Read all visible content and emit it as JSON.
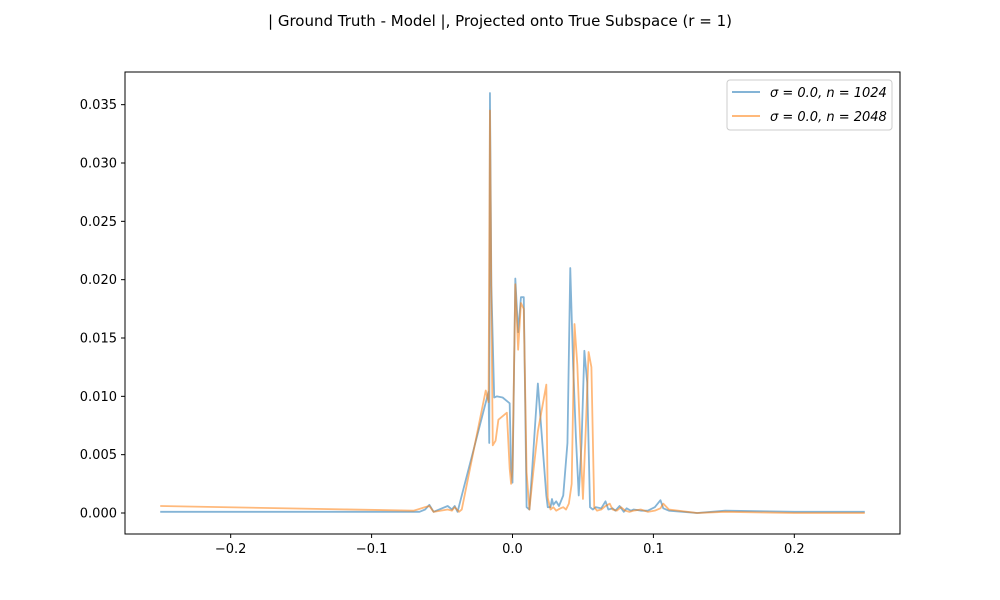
{
  "chart_data": {
    "type": "line",
    "title": "| Ground Truth - Model |, Projected onto True Subspace (r = 1)",
    "xlabel": "",
    "ylabel": "",
    "xlim": [
      -0.275,
      0.275
    ],
    "ylim": [
      -0.0018,
      0.0378
    ],
    "xticks": [
      -0.2,
      -0.1,
      0.0,
      0.1,
      0.2
    ],
    "xtick_labels": [
      "−0.2",
      "−0.1",
      "0.0",
      "0.1",
      "0.2"
    ],
    "yticks": [
      0.0,
      0.005,
      0.01,
      0.015,
      0.02,
      0.025,
      0.03,
      0.035
    ],
    "ytick_labels": [
      "0.000",
      "0.005",
      "0.010",
      "0.015",
      "0.020",
      "0.025",
      "0.030",
      "0.035"
    ],
    "grid": false,
    "legend_position": "top-right",
    "series": [
      {
        "name": "σ = 0.0, n = 1024",
        "color": "#1f77b4",
        "x": [
          -0.25,
          -0.066,
          -0.062,
          -0.059,
          -0.056,
          -0.046,
          -0.043,
          -0.041,
          -0.039,
          -0.017,
          -0.0165,
          -0.016,
          -0.015,
          -0.013,
          -0.011,
          -0.007,
          -0.002,
          -0.001,
          0.0,
          0.002,
          0.004,
          0.006,
          0.008,
          0.01,
          0.012,
          0.014,
          0.016,
          0.018,
          0.024,
          0.025,
          0.027,
          0.028,
          0.029,
          0.031,
          0.033,
          0.036,
          0.039,
          0.041,
          0.043,
          0.045,
          0.047,
          0.049,
          0.051,
          0.053,
          0.055,
          0.057,
          0.059,
          0.063,
          0.066,
          0.068,
          0.071,
          0.073,
          0.076,
          0.079,
          0.081,
          0.084,
          0.086,
          0.091,
          0.096,
          0.101,
          0.105,
          0.107,
          0.111,
          0.131,
          0.151,
          0.2,
          0.25
        ],
        "y": [
          0.0001,
          0.0001,
          0.0003,
          0.0007,
          0.0001,
          0.0006,
          0.0003,
          0.0006,
          0.0001,
          0.0104,
          0.006,
          0.036,
          0.0195,
          0.0099,
          0.01,
          0.0099,
          0.0094,
          0.0038,
          0.0026,
          0.0201,
          0.0155,
          0.0185,
          0.0185,
          0.0005,
          0.0003,
          0.0038,
          0.0075,
          0.0111,
          0.0015,
          0.0005,
          0.0005,
          0.0012,
          0.0007,
          0.001,
          0.0006,
          0.0015,
          0.006,
          0.021,
          0.0128,
          0.0065,
          0.0015,
          0.006,
          0.0139,
          0.0112,
          0.0005,
          0.0003,
          0.0005,
          0.0004,
          0.001,
          0.0003,
          0.0004,
          0.0002,
          0.0006,
          0.0001,
          0.0004,
          0.0002,
          0.0003,
          0.0002,
          0.0002,
          0.0005,
          0.0011,
          0.0004,
          0.0002,
          0.0,
          0.0002,
          0.0001,
          0.0001
        ]
      },
      {
        "name": "σ = 0.0, n = 2048",
        "color": "#ff7f0e",
        "x": [
          -0.25,
          -0.07,
          -0.062,
          -0.059,
          -0.056,
          -0.046,
          -0.043,
          -0.041,
          -0.038,
          -0.036,
          -0.019,
          -0.017,
          -0.016,
          -0.015,
          -0.014,
          -0.012,
          -0.01,
          -0.004,
          -0.002,
          -0.001,
          0.0,
          0.002,
          0.004,
          0.006,
          0.008,
          0.01,
          0.012,
          0.015,
          0.018,
          0.024,
          0.025,
          0.027,
          0.029,
          0.031,
          0.034,
          0.036,
          0.038,
          0.04,
          0.042,
          0.044,
          0.046,
          0.048,
          0.05,
          0.052,
          0.054,
          0.056,
          0.058,
          0.06,
          0.063,
          0.066,
          0.069,
          0.071,
          0.074,
          0.077,
          0.08,
          0.083,
          0.086,
          0.091,
          0.096,
          0.101,
          0.105,
          0.107,
          0.111,
          0.131,
          0.151,
          0.2,
          0.25
        ],
        "y": [
          0.0006,
          0.0002,
          0.0005,
          0.0006,
          0.0001,
          0.0003,
          0.0002,
          0.0005,
          0.0001,
          0.0003,
          0.0105,
          0.0095,
          0.0345,
          0.018,
          0.0058,
          0.0062,
          0.008,
          0.0086,
          0.0038,
          0.0025,
          0.0038,
          0.0196,
          0.014,
          0.018,
          0.0175,
          0.0035,
          0.0003,
          0.0038,
          0.007,
          0.011,
          0.0013,
          0.0003,
          0.0005,
          0.0002,
          0.0004,
          0.0005,
          0.0003,
          0.0008,
          0.0025,
          0.0162,
          0.0127,
          0.0065,
          0.0012,
          0.0072,
          0.0138,
          0.0125,
          0.0005,
          0.0002,
          0.0003,
          0.0006,
          0.0008,
          0.0003,
          0.0002,
          0.0005,
          0.0002,
          0.0001,
          0.0002,
          0.0003,
          0.0001,
          0.0002,
          0.0004,
          0.0008,
          0.0003,
          0.0,
          0.0001,
          0.0,
          0.0
        ]
      }
    ]
  }
}
